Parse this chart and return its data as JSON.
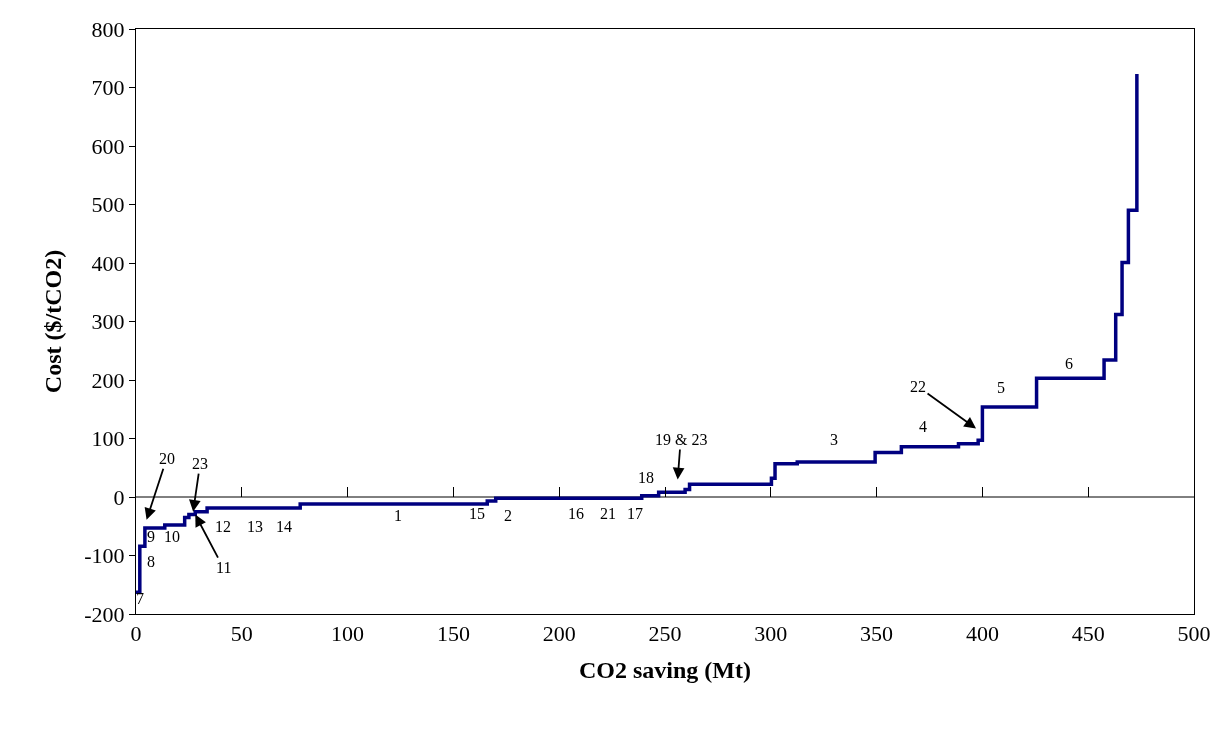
{
  "chart_data": {
    "type": "step",
    "xlabel": "CO2 saving (Mt)",
    "ylabel": "Cost ($/tCO2)",
    "x": [
      0,
      1.8,
      4.2,
      13.6,
      23,
      25,
      28,
      33.6,
      77.6,
      166,
      170,
      239,
      247,
      259.5,
      261.6,
      300.3,
      302,
      312.5,
      349.3,
      361.7,
      388.7,
      398,
      400,
      425.6,
      457.5,
      463,
      466,
      469,
      473
    ],
    "series": [
      {
        "color": "#000080",
        "values": [
          -163,
          -84,
          -53,
          -48,
          -35,
          -30,
          -25,
          -19,
          -12,
          -7,
          -2,
          2,
          8,
          13,
          22,
          32,
          57,
          60,
          76,
          86,
          91,
          97,
          154,
          203,
          234,
          312,
          401,
          490,
          723
        ]
      }
    ],
    "xlim": [
      0,
      500
    ],
    "xticks": [
      0,
      50,
      100,
      150,
      200,
      250,
      300,
      350,
      400,
      450,
      500
    ],
    "ylim": [
      -200,
      800
    ],
    "yticks": [
      -200,
      -100,
      0,
      100,
      200,
      300,
      400,
      500,
      600,
      700,
      800
    ],
    "grid": false,
    "legend": false,
    "marker": "none",
    "line_style": "solid",
    "ref_lines": [
      {
        "axis": "y",
        "value": 0,
        "color": "#000000"
      }
    ],
    "annotations": [
      "20",
      {
        "text": "23",
        "x": 27,
        "y": -25
      },
      {
        "text": "11",
        "x": 28,
        "y": -30
      },
      "19 & 23",
      "22",
      "7",
      "8",
      "9",
      "10",
      "12",
      "13",
      "14",
      "1",
      "15",
      "2",
      "16",
      "21",
      "17",
      "18",
      "3",
      "4",
      "5",
      "6"
    ]
  }
}
